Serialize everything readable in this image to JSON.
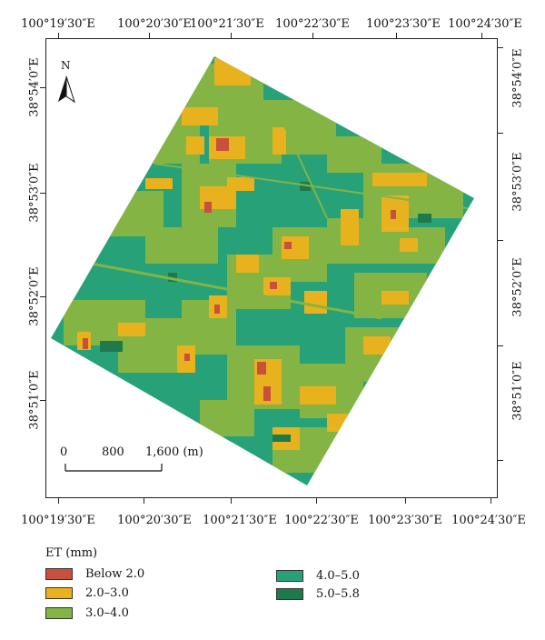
{
  "map": {
    "top_labels": [
      "100°19′30″E",
      "100°20′30″E",
      "100°21′30″E",
      "100°22′30″E",
      "100°23′30″E",
      "100°24′30″E"
    ],
    "bottom_labels": [
      "100°19′30″E",
      "100°20′30″E",
      "100°21′30″E",
      "100°22′30″E",
      "100°23′30″E",
      "100°24′30″E"
    ],
    "left_labels": [
      "38°54′0″E",
      "38°53′0″E",
      "38°52′0″E",
      "38°51′0″E"
    ],
    "right_labels": [
      "38°54′0″E",
      "38°53′0″E",
      "38°52′0″E",
      "38°51′0″E"
    ],
    "north_label": "N",
    "scale": {
      "ticks": [
        "0",
        "800",
        "1,600 (m)"
      ]
    }
  },
  "legend": {
    "title": "ET (mm)",
    "items": [
      {
        "label": "Below 2.0",
        "color": "#c8503c"
      },
      {
        "label": "2.0–3.0",
        "color": "#e8b21e"
      },
      {
        "label": "3.0–4.0",
        "color": "#84b444"
      },
      {
        "label": "4.0–5.0",
        "color": "#27a178"
      },
      {
        "label": "5.0–5.8",
        "color": "#1e7a4a"
      }
    ]
  }
}
